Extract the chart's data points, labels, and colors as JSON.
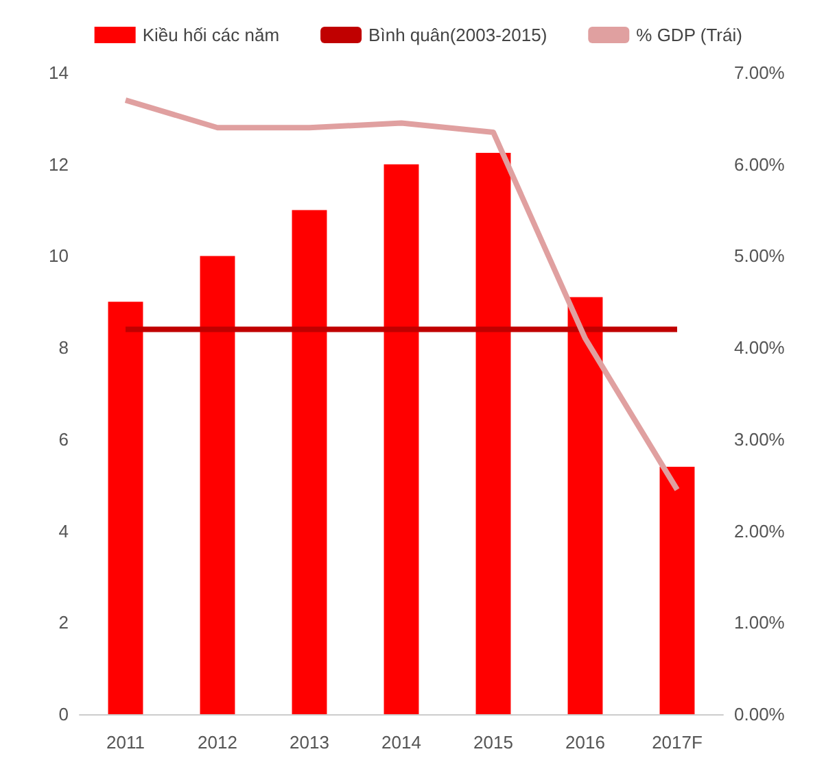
{
  "chart_data": {
    "type": "bar",
    "categories": [
      "2011",
      "2012",
      "2013",
      "2014",
      "2015",
      "2016",
      "2017F"
    ],
    "series": [
      {
        "name": "Kiều hối các năm",
        "color": "#ff0000",
        "values": [
          9,
          10,
          11,
          12,
          12.25,
          9.1,
          5.4
        ]
      },
      {
        "name": "Bình quân(2003-2015)",
        "type": "line",
        "color": "#c00000",
        "values": [
          8.4,
          8.4,
          8.4,
          8.4,
          8.4,
          8.4,
          8.4
        ]
      },
      {
        "name": "% GDP (Trái)",
        "type": "line",
        "axis": "y2",
        "color": "#e0a0a0",
        "values": [
          6.7,
          6.4,
          6.4,
          6.45,
          6.35,
          4.1,
          2.45
        ]
      }
    ],
    "ylim": [
      0,
      14
    ],
    "yticks": [
      0,
      2,
      4,
      6,
      8,
      10,
      12,
      14
    ],
    "y2lim": [
      0,
      7
    ],
    "y2ticks": [
      {
        "value": 0,
        "label": "0.00%"
      },
      {
        "value": 1,
        "label": "1.00%"
      },
      {
        "value": 2,
        "label": "2.00%"
      },
      {
        "value": 3,
        "label": "3.00%"
      },
      {
        "value": 4,
        "label": "4.00%"
      },
      {
        "value": 5,
        "label": "5.00%"
      },
      {
        "value": 6,
        "label": "6.00%"
      },
      {
        "value": 7,
        "label": "7.00%"
      }
    ],
    "legend": "top",
    "grid": false,
    "marker": "none"
  }
}
